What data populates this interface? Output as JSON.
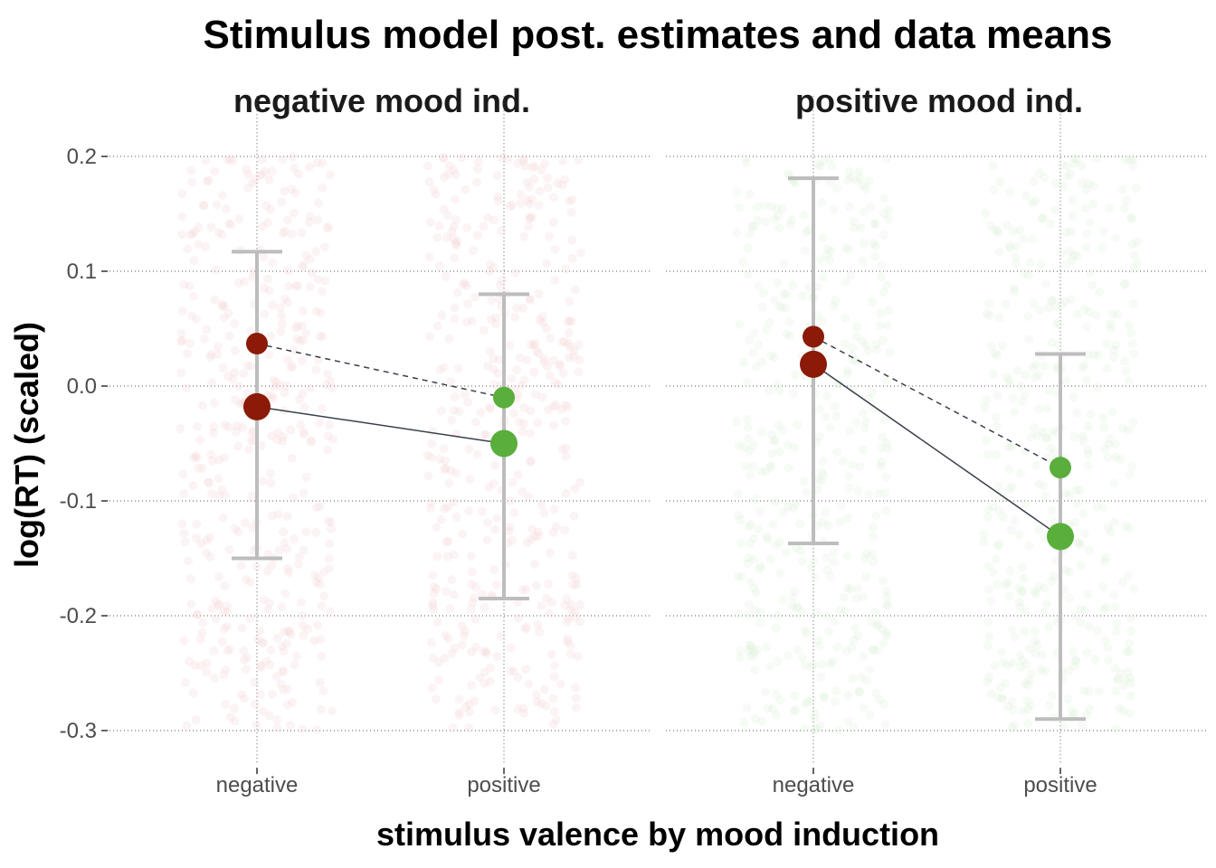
{
  "chart_data": {
    "type": "scatter",
    "title": "Stimulus model post. estimates and data means",
    "xlabel": "stimulus valence by mood induction",
    "ylabel": "log(RT) (scaled)",
    "ylim": [
      -0.33,
      0.225
    ],
    "y_ticks": [
      0.2,
      0.1,
      0.0,
      -0.1,
      -0.2,
      -0.3
    ],
    "y_tick_labels": [
      "0.2",
      "0.1",
      "0.0",
      "-0.1",
      "-0.2",
      "-0.3"
    ],
    "categories": [
      "negative",
      "positive"
    ],
    "grid": true,
    "legend": "none",
    "colors": {
      "negative": "#8b1a08",
      "positive": "#5aae3c",
      "errorbar": "#bdbdbd",
      "line": "#3a3f4a",
      "jitter_negative_panel": "#f4d5d2",
      "jitter_positive_panel": "#dcefd8"
    },
    "panels": [
      {
        "name": "negative mood ind.",
        "estimate": [
          -0.018,
          -0.05
        ],
        "ci_lower": [
          -0.15,
          -0.185
        ],
        "ci_upper": [
          0.117,
          0.08
        ],
        "data_mean": [
          0.037,
          -0.01
        ]
      },
      {
        "name": "positive mood ind.",
        "estimate": [
          0.019,
          -0.131
        ],
        "ci_lower": [
          -0.137,
          -0.29
        ],
        "ci_upper": [
          0.181,
          0.028
        ],
        "data_mean": [
          0.043,
          -0.071
        ]
      }
    ]
  }
}
